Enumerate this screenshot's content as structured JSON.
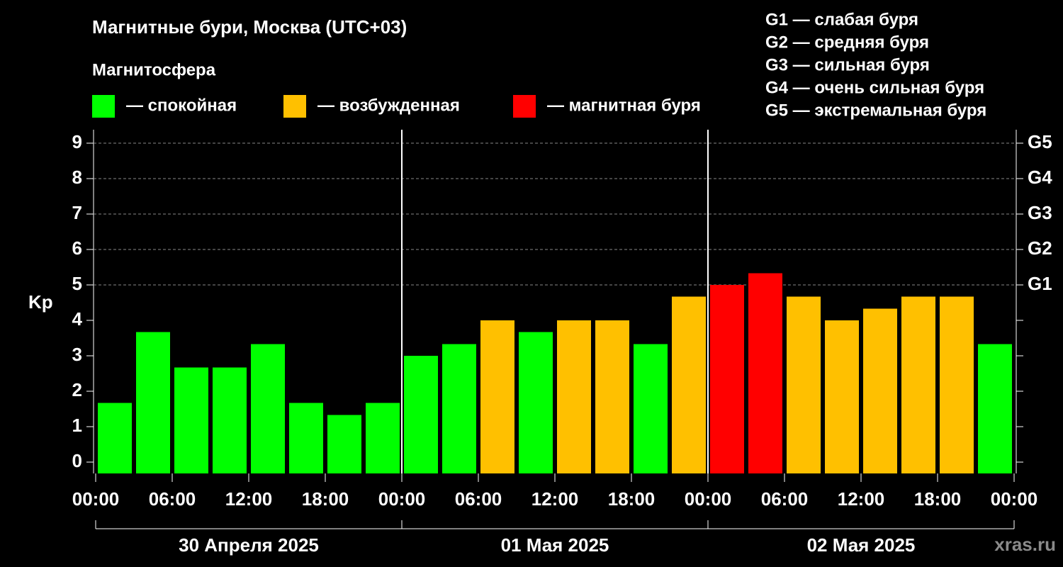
{
  "chart_data": {
    "type": "bar",
    "title": "Магнитные бури, Москва (UTC+03)",
    "legend_title": "Магнитосфера",
    "legend": [
      {
        "label": "— спокойная",
        "color": "#00ff00"
      },
      {
        "label": "— возбужденная",
        "color": "#ffc000"
      },
      {
        "label": "— магнитная буря",
        "color": "#ff0000"
      }
    ],
    "scale_notes": [
      "G1 — слабая буря",
      "G2 — средняя буря",
      "G3 — сильная буря",
      "G4 — очень сильная буря",
      "G5 — экстремальная буря"
    ],
    "y_label": "Kp",
    "x": [
      1.5,
      4.5,
      7.5,
      10.5,
      13.5,
      16.5,
      19.5,
      22.5,
      25.5,
      28.5,
      31.5,
      34.5,
      37.5,
      40.5,
      43.5,
      46.5,
      49.5,
      52.5,
      55.5,
      58.5,
      61.5,
      64.5,
      67.5,
      70.5
    ],
    "values": [
      1.67,
      3.67,
      2.67,
      2.67,
      3.33,
      1.67,
      1.33,
      1.67,
      3.0,
      3.33,
      4.0,
      3.67,
      4.0,
      4.0,
      3.33,
      4.67,
      5.0,
      5.33,
      4.67,
      4.0,
      4.33,
      4.67,
      4.67,
      3.33
    ],
    "colors": [
      "#00ff00",
      "#00ff00",
      "#00ff00",
      "#00ff00",
      "#00ff00",
      "#00ff00",
      "#00ff00",
      "#00ff00",
      "#00ff00",
      "#00ff00",
      "#ffc000",
      "#00ff00",
      "#ffc000",
      "#ffc000",
      "#00ff00",
      "#ffc000",
      "#ff0000",
      "#ff0000",
      "#ffc000",
      "#ffc000",
      "#ffc000",
      "#ffc000",
      "#ffc000",
      "#00ff00"
    ],
    "xlim": [
      0,
      72
    ],
    "xticks": [
      {
        "value": 0,
        "label": "00:00"
      },
      {
        "value": 6,
        "label": "06:00"
      },
      {
        "value": 12,
        "label": "12:00"
      },
      {
        "value": 18,
        "label": "18:00"
      },
      {
        "value": 24,
        "label": "00:00"
      },
      {
        "value": 30,
        "label": "06:00"
      },
      {
        "value": 36,
        "label": "12:00"
      },
      {
        "value": 42,
        "label": "18:00"
      },
      {
        "value": 48,
        "label": "00:00"
      },
      {
        "value": 54,
        "label": "06:00"
      },
      {
        "value": 60,
        "label": "12:00"
      },
      {
        "value": 66,
        "label": "18:00"
      },
      {
        "value": 72,
        "label": "00:00"
      }
    ],
    "days": [
      {
        "start": 0,
        "end": 24,
        "label": "30 Апреля 2025"
      },
      {
        "start": 24,
        "end": 48,
        "label": "01 Мая 2025"
      },
      {
        "start": 48,
        "end": 72,
        "label": "02 Мая 2025"
      }
    ],
    "ylim": [
      -0.32,
      9.38
    ],
    "yticks": [
      0,
      1,
      2,
      3,
      4,
      5,
      6,
      7,
      8,
      9
    ],
    "y2lim": [
      -0.32,
      9.38
    ],
    "y2ticks": [
      {
        "value": 5,
        "label": "G1"
      },
      {
        "value": 6,
        "label": "G2"
      },
      {
        "value": 7,
        "label": "G3"
      },
      {
        "value": 8,
        "label": "G4"
      },
      {
        "value": 9,
        "label": "G5"
      }
    ],
    "grid": true,
    "watermark": "xras.ru"
  }
}
